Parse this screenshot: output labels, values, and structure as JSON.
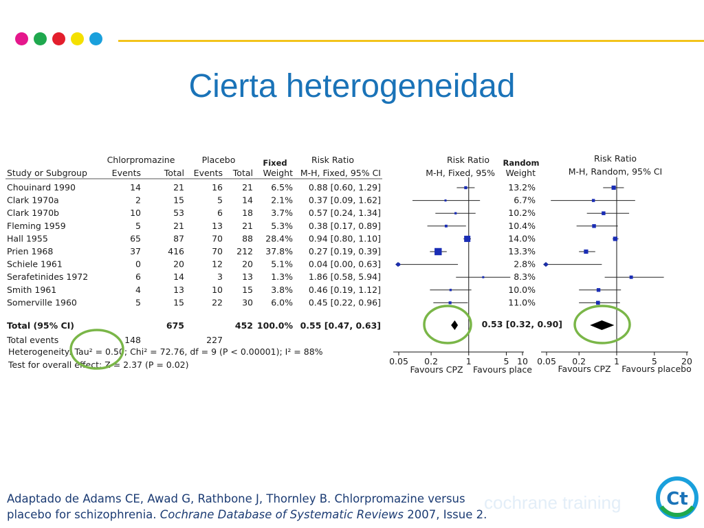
{
  "header": {
    "dot_colors": [
      "#e5178c",
      "#1fa84e",
      "#e31e2d",
      "#f4e000",
      "#1aa0dc"
    ],
    "rule_color": "#f2c31b",
    "title": "Cierta heterogeneidad"
  },
  "table": {
    "group_headers": {
      "chlorpromazine": "Chlorpromazine",
      "placebo": "Placebo",
      "fixed": "Fixed",
      "random": "Random"
    },
    "col_headers": {
      "study": "Study or Subgroup",
      "cpz_events": "Events",
      "cpz_total": "Total",
      "pl_events": "Events",
      "pl_total": "Total",
      "fixed_weight": "Weight",
      "risk_ratio_fixed_title": "Risk Ratio",
      "risk_ratio_fixed_sub": "M-H, Fixed, 95% CI",
      "random_weight": "Weight"
    },
    "rows": [
      {
        "study": "Chouinard 1990",
        "cpz_events": "14",
        "cpz_total": "21",
        "pl_events": "16",
        "pl_total": "21",
        "fixed_weight": "6.5%",
        "rr_fixed": "0.88 [0.60, 1.29]",
        "random_weight": "13.2%"
      },
      {
        "study": "Clark 1970a",
        "cpz_events": "2",
        "cpz_total": "15",
        "pl_events": "5",
        "pl_total": "14",
        "fixed_weight": "2.1%",
        "rr_fixed": "0.37 [0.09, 1.62]",
        "random_weight": "6.7%"
      },
      {
        "study": "Clark 1970b",
        "cpz_events": "10",
        "cpz_total": "53",
        "pl_events": "6",
        "pl_total": "18",
        "fixed_weight": "3.7%",
        "rr_fixed": "0.57 [0.24, 1.34]",
        "random_weight": "10.2%"
      },
      {
        "study": "Fleming 1959",
        "cpz_events": "5",
        "cpz_total": "21",
        "pl_events": "13",
        "pl_total": "21",
        "fixed_weight": "5.3%",
        "rr_fixed": "0.38 [0.17, 0.89]",
        "random_weight": "10.4%"
      },
      {
        "study": "Hall 1955",
        "cpz_events": "65",
        "cpz_total": "87",
        "pl_events": "70",
        "pl_total": "88",
        "fixed_weight": "28.4%",
        "rr_fixed": "0.94 [0.80, 1.10]",
        "random_weight": "14.0%"
      },
      {
        "study": "Prien 1968",
        "cpz_events": "37",
        "cpz_total": "416",
        "pl_events": "70",
        "pl_total": "212",
        "fixed_weight": "37.8%",
        "rr_fixed": "0.27 [0.19, 0.39]",
        "random_weight": "13.3%"
      },
      {
        "study": "Schiele 1961",
        "cpz_events": "0",
        "cpz_total": "20",
        "pl_events": "12",
        "pl_total": "20",
        "fixed_weight": "5.1%",
        "rr_fixed": "0.04 [0.00, 0.63]",
        "random_weight": "2.8%"
      },
      {
        "study": "Serafetinides 1972",
        "cpz_events": "6",
        "cpz_total": "14",
        "pl_events": "3",
        "pl_total": "13",
        "fixed_weight": "1.3%",
        "rr_fixed": "1.86 [0.58, 5.94]",
        "random_weight": "8.3%"
      },
      {
        "study": "Smith 1961",
        "cpz_events": "4",
        "cpz_total": "13",
        "pl_events": "10",
        "pl_total": "15",
        "fixed_weight": "3.8%",
        "rr_fixed": "0.46 [0.19, 1.12]",
        "random_weight": "10.0%"
      },
      {
        "study": "Somerville 1960",
        "cpz_events": "5",
        "cpz_total": "15",
        "pl_events": "22",
        "pl_total": "30",
        "fixed_weight": "6.0%",
        "rr_fixed": "0.45 [0.22, 0.96]",
        "random_weight": "11.0%"
      }
    ],
    "total": {
      "label": "Total (95% CI)",
      "cpz_total": "675",
      "pl_total": "452",
      "fixed_weight": "100.0%",
      "rr_fixed": "0.55 [0.47, 0.63]",
      "rr_random": "0.53 [0.32, 0.90]"
    },
    "total_events": {
      "label": "Total events",
      "cpz": "148",
      "pl": "227"
    },
    "heterogeneity": "Heterogeneity: Tau² = 0.50; Chi² = 72.76, df = 9 (P < 0.00001); I² = 88%",
    "overall_effect": "Test for overall effect: Z = 2.37 (P = 0.02)"
  },
  "chart_data": [
    {
      "type": "scatter",
      "title": "Risk Ratio",
      "subtitle": "M-H, Fixed, 95%",
      "x_scale": "log",
      "xlim": [
        0.05,
        10
      ],
      "ticks": [
        "0.05",
        "0.2",
        "1",
        "5",
        "10"
      ],
      "tick_values": [
        0.05,
        0.2,
        1,
        5,
        10
      ],
      "favours_left": "Favours CPZ",
      "favours_right": "Favours place",
      "points": [
        {
          "est": 0.88,
          "low": 0.6,
          "high": 1.29,
          "weight": 6.5
        },
        {
          "est": 0.37,
          "low": 0.09,
          "high": 1.62,
          "weight": 2.1
        },
        {
          "est": 0.57,
          "low": 0.24,
          "high": 1.34,
          "weight": 3.7
        },
        {
          "est": 0.38,
          "low": 0.17,
          "high": 0.89,
          "weight": 5.3
        },
        {
          "est": 0.94,
          "low": 0.8,
          "high": 1.1,
          "weight": 28.4
        },
        {
          "est": 0.27,
          "low": 0.19,
          "high": 0.39,
          "weight": 37.8
        },
        {
          "est": 0.04,
          "low": 0.0,
          "high": 0.63,
          "weight": 5.1
        },
        {
          "est": 1.86,
          "low": 0.58,
          "high": 5.94,
          "weight": 1.3
        },
        {
          "est": 0.46,
          "low": 0.19,
          "high": 1.12,
          "weight": 3.8
        },
        {
          "est": 0.45,
          "low": 0.22,
          "high": 0.96,
          "weight": 6.0
        }
      ],
      "pooled": {
        "est": 0.55,
        "low": 0.47,
        "high": 0.63
      }
    },
    {
      "type": "scatter",
      "title": "Risk Ratio",
      "subtitle": "M-H, Random, 95% CI",
      "x_scale": "log",
      "xlim": [
        0.05,
        20
      ],
      "ticks": [
        "0.05",
        "0.2",
        "1",
        "5",
        "20"
      ],
      "tick_values": [
        0.05,
        0.2,
        1,
        5,
        20
      ],
      "favours_left": "Favours CPZ",
      "favours_right": "Favours placebo",
      "points": [
        {
          "est": 0.88,
          "low": 0.56,
          "high": 1.36,
          "weight": 13.2
        },
        {
          "est": 0.37,
          "low": 0.06,
          "high": 2.2,
          "weight": 6.7
        },
        {
          "est": 0.57,
          "low": 0.28,
          "high": 1.7,
          "weight": 10.2
        },
        {
          "est": 0.38,
          "low": 0.18,
          "high": 1.05,
          "weight": 10.4
        },
        {
          "est": 0.94,
          "low": 0.84,
          "high": 1.08,
          "weight": 14.0
        },
        {
          "est": 0.27,
          "low": 0.2,
          "high": 0.4,
          "weight": 13.3
        },
        {
          "est": 0.04,
          "low": 0.02,
          "high": 0.53,
          "weight": 2.8
        },
        {
          "est": 1.86,
          "low": 0.6,
          "high": 7.5,
          "weight": 8.3
        },
        {
          "est": 0.46,
          "low": 0.2,
          "high": 1.2,
          "weight": 10.0
        },
        {
          "est": 0.45,
          "low": 0.2,
          "high": 1.15,
          "weight": 11.0
        }
      ],
      "pooled": {
        "est": 0.53,
        "low": 0.32,
        "high": 0.9
      }
    }
  ],
  "annotation_color": "#7ab648",
  "citation": {
    "line1": "Adaptado de Adams CE, Awad G, Rathbone J, Thornley B. Chlorpromazine versus",
    "line2_prefix": "placebo for schizophrenia. ",
    "journal": "Cochrane Database of Systematic Reviews",
    "line2_suffix": " 2007, Issue 2."
  },
  "brand": {
    "text": "cochrane training",
    "logo_letters": "Ct"
  }
}
